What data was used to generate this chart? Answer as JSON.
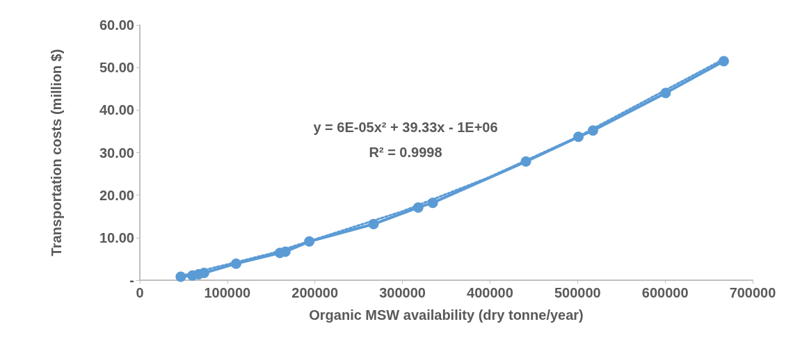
{
  "chart_data": {
    "type": "line",
    "xlabel": "Organic MSW availability (dry tonne/year)",
    "ylabel": "Transportation costs (million $)",
    "x": [
      46800,
      60100,
      67100,
      73400,
      110000,
      160000,
      166300,
      193600,
      267000,
      318000,
      334600,
      441000,
      501000,
      517600,
      600600,
      667000
    ],
    "series": [
      {
        "color": "#5b9bd5",
        "marker": "circle",
        "line_style": "solid",
        "values": [
          0.8,
          1.1,
          1.4,
          1.7,
          3.9,
          6.4,
          6.7,
          9.1,
          13.2,
          17.1,
          18.2,
          27.9,
          33.7,
          35.2,
          44.0,
          51.5
        ]
      },
      {
        "type": "line",
        "color": "#5b9bd5",
        "marker": "none",
        "line_style": "dotted",
        "x": [
          46800,
          150000,
          300000,
          400000,
          500000,
          667000
        ],
        "values": [
          1.0,
          6.3,
          16.2,
          24.3,
          33.7,
          52.0
        ]
      }
    ],
    "xlim": [
      0,
      700000
    ],
    "xticks": [
      0,
      100000,
      200000,
      300000,
      400000,
      500000,
      600000,
      700000
    ],
    "ylim": [
      0,
      60
    ],
    "yticks": [
      {
        "value": 0,
        "label": "-"
      },
      {
        "value": 10,
        "label": "10.00"
      },
      {
        "value": 20,
        "label": "20.00"
      },
      {
        "value": 30,
        "label": "30.00"
      },
      {
        "value": 40,
        "label": "40.00"
      },
      {
        "value": 50,
        "label": "50.00"
      },
      {
        "value": 60,
        "label": "60.00"
      }
    ],
    "annotations": [
      "y = 6E-05x² + 39.33x - 1E+06",
      "R² = 0.9998"
    ],
    "grid": false
  }
}
